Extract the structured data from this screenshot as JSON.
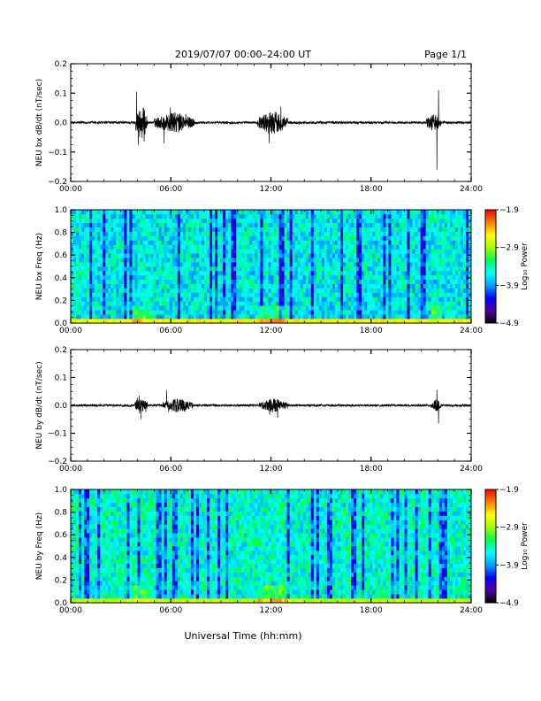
{
  "header": {
    "title": "2019/07/07  00:00–24:00 UT",
    "page": "Page 1/1"
  },
  "chart_data": [
    {
      "type": "line",
      "id": "bx-dbdt",
      "ylabel": "NEU bx dB/dt (nT/sec)",
      "xlim": [
        0,
        24
      ],
      "ylim": [
        -0.2,
        0.2
      ],
      "y_ticks": [
        "0.2",
        "0.1",
        "0.0",
        "−0.1",
        "−0.2"
      ],
      "y_tick_values": [
        0.2,
        0.1,
        0.0,
        -0.1,
        -0.2
      ],
      "x_ticks": [
        "00:00",
        "06:00",
        "12:00",
        "18:00",
        "24:00"
      ],
      "x_tick_values": [
        0,
        6,
        12,
        18,
        24
      ],
      "noise_level": 0.004,
      "bursts": [
        {
          "start": 3.9,
          "end": 4.6,
          "amplitude": 0.06
        },
        {
          "start": 5.0,
          "end": 7.4,
          "amplitude": 0.035
        },
        {
          "start": 11.2,
          "end": 13.0,
          "amplitude": 0.04
        },
        {
          "start": 21.3,
          "end": 22.2,
          "amplitude": 0.03
        }
      ],
      "peaks": [
        {
          "x": 3.95,
          "y": 0.105
        },
        {
          "x": 4.05,
          "y": -0.075
        },
        {
          "x": 4.4,
          "y": -0.065
        },
        {
          "x": 5.6,
          "y": -0.07
        },
        {
          "x": 11.9,
          "y": -0.07
        },
        {
          "x": 12.6,
          "y": 0.055
        },
        {
          "x": 22.05,
          "y": 0.11
        },
        {
          "x": 21.95,
          "y": -0.16
        }
      ]
    },
    {
      "type": "heatmap",
      "id": "bx-spectrogram",
      "ylabel": "NEU bx Freq (Hz)",
      "xlim": [
        0,
        24
      ],
      "ylim": [
        0,
        1.0
      ],
      "y_ticks": [
        "0.0",
        "0.2",
        "0.4",
        "0.6",
        "0.8",
        "1.0"
      ],
      "y_tick_values": [
        0.0,
        0.2,
        0.4,
        0.6,
        0.8,
        1.0
      ],
      "x_ticks": [
        "00:00",
        "06:00",
        "12:00",
        "18:00",
        "24:00"
      ],
      "x_tick_values": [
        0,
        6,
        12,
        18,
        24
      ],
      "colorbar": {
        "label": "Log₁₀ Power",
        "range": [
          -4.9,
          -1.9
        ],
        "ticks": [
          "−1.9",
          "−2.9",
          "−3.9",
          "−4.9"
        ],
        "tick_values": [
          -1.9,
          -2.9,
          -3.9,
          -4.9
        ],
        "colors": [
          "#000000",
          "#5000a0",
          "#0000ff",
          "#00a0ff",
          "#00ffff",
          "#00ff50",
          "#a0ff00",
          "#ffff00",
          "#ff8000",
          "#ff0000"
        ]
      },
      "background_level": -3.6,
      "low_frequency_level": -2.6,
      "enhanced_intervals": [
        {
          "start": 3.7,
          "end": 4.8,
          "level": -2.4
        },
        {
          "start": 11.2,
          "end": 13.0,
          "level": -2.3
        },
        {
          "start": 21.6,
          "end": 22.2,
          "level": -2.6
        }
      ]
    },
    {
      "type": "line",
      "id": "by-dbdt",
      "ylabel": "NEU by dB/dt (nT/sec)",
      "xlim": [
        0,
        24
      ],
      "ylim": [
        -0.2,
        0.2
      ],
      "y_ticks": [
        "0.2",
        "0.1",
        "0.0",
        "−0.1",
        "−0.2"
      ],
      "y_tick_values": [
        0.2,
        0.1,
        0.0,
        -0.1,
        -0.2
      ],
      "x_ticks": [
        "00:00",
        "06:00",
        "12:00",
        "18:00",
        "24:00"
      ],
      "x_tick_values": [
        0,
        6,
        12,
        18,
        24
      ],
      "noise_level": 0.004,
      "bursts": [
        {
          "start": 3.8,
          "end": 4.6,
          "amplitude": 0.03
        },
        {
          "start": 5.5,
          "end": 7.3,
          "amplitude": 0.025
        },
        {
          "start": 11.3,
          "end": 13.0,
          "amplitude": 0.025
        },
        {
          "start": 21.6,
          "end": 22.2,
          "amplitude": 0.022
        }
      ],
      "peaks": [
        {
          "x": 4.1,
          "y": 0.035
        },
        {
          "x": 4.2,
          "y": -0.05
        },
        {
          "x": 5.75,
          "y": 0.055
        },
        {
          "x": 12.4,
          "y": -0.045
        },
        {
          "x": 21.95,
          "y": 0.055
        },
        {
          "x": 22.05,
          "y": -0.065
        }
      ]
    },
    {
      "type": "heatmap",
      "id": "by-spectrogram",
      "ylabel": "NEU by Freq (Hz)",
      "xlim": [
        0,
        24
      ],
      "ylim": [
        0,
        1.0
      ],
      "y_ticks": [
        "0.0",
        "0.2",
        "0.4",
        "0.6",
        "0.8",
        "1.0"
      ],
      "y_tick_values": [
        0.0,
        0.2,
        0.4,
        0.6,
        0.8,
        1.0
      ],
      "x_ticks": [
        "00:00",
        "06:00",
        "12:00",
        "18:00",
        "24:00"
      ],
      "x_tick_values": [
        0,
        6,
        12,
        18,
        24
      ],
      "colorbar": {
        "label": "Log₁₀ Power",
        "range": [
          -4.9,
          -1.9
        ],
        "ticks": [
          "−1.9",
          "−2.9",
          "−3.9",
          "−4.9"
        ],
        "tick_values": [
          -1.9,
          -2.9,
          -3.9,
          -4.9
        ],
        "colors": [
          "#000000",
          "#5000a0",
          "#0000ff",
          "#00a0ff",
          "#00ffff",
          "#00ff50",
          "#a0ff00",
          "#ffff00",
          "#ff8000",
          "#ff0000"
        ]
      },
      "background_level": -3.5,
      "low_frequency_level": -2.8,
      "enhanced_intervals": [
        {
          "start": 3.7,
          "end": 4.8,
          "level": -2.6
        },
        {
          "start": 11.2,
          "end": 13.0,
          "level": -2.4
        }
      ]
    }
  ],
  "xlabel": "Universal Time (hh:mm)"
}
